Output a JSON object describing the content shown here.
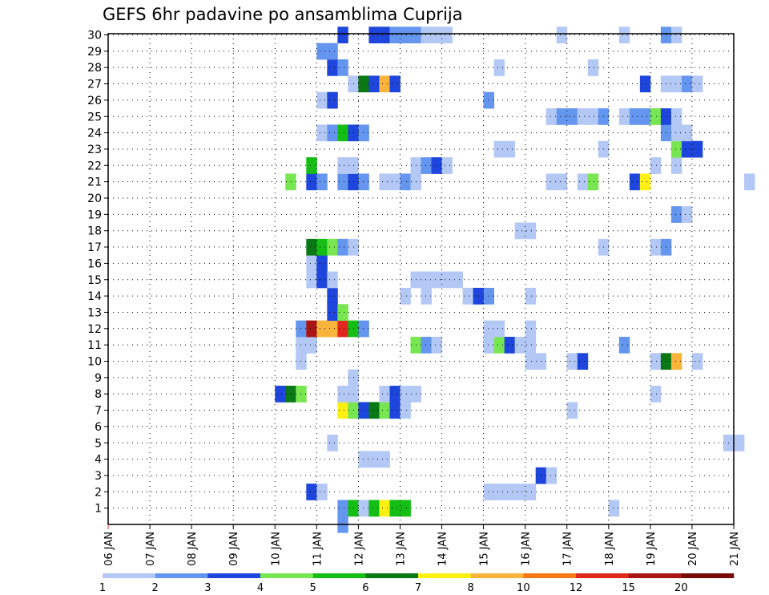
{
  "chart_data": {
    "type": "heatmap",
    "title": "GEFS 6hr padavine po ansamblima Cuprija",
    "y_categories": [
      "1",
      "2",
      "3",
      "4",
      "5",
      "6",
      "7",
      "8",
      "9",
      "10",
      "11",
      "12",
      "13",
      "14",
      "15",
      "16",
      "17",
      "18",
      "19",
      "20",
      "21",
      "22",
      "23",
      "24",
      "25",
      "26",
      "27",
      "28",
      "29",
      "30"
    ],
    "x_ticks": [
      "06 JAN",
      "07 JAN",
      "08 JAN",
      "09 JAN",
      "10 JAN",
      "11 JAN",
      "12 JAN",
      "13 JAN",
      "14 JAN",
      "15 JAN",
      "16 JAN",
      "17 JAN",
      "18 JAN",
      "19 JAN",
      "20 JAN",
      "21 JAN"
    ],
    "x_start": "06 JAN 00Z",
    "x_step_hours": 6,
    "grid": true,
    "colorbar": {
      "labels": [
        "1",
        "2",
        "3",
        "4",
        "5",
        "6",
        "7",
        "8",
        "10",
        "12",
        "15",
        "20"
      ],
      "colors": [
        "#b4c8f5",
        "#6496f0",
        "#1e46dc",
        "#78e650",
        "#14be14",
        "#0a7814",
        "#fff014",
        "#fab43c",
        "#f57814",
        "#e1281e",
        "#aa1414",
        "#780a0a"
      ]
    },
    "cells": [
      [
        1,
        22,
        "#6496f0"
      ],
      [
        1,
        23,
        "#14be14"
      ],
      [
        1,
        24,
        "#b4c8f5"
      ],
      [
        1,
        25,
        "#14be14"
      ],
      [
        1,
        26,
        "#fff014"
      ],
      [
        1,
        27,
        "#14be14"
      ],
      [
        1,
        28,
        "#14be14"
      ],
      [
        1,
        48,
        "#b4c8f5"
      ],
      [
        2,
        19,
        "#1e46dc"
      ],
      [
        2,
        20,
        "#b4c8f5"
      ],
      [
        2,
        36,
        "#b4c8f5"
      ],
      [
        2,
        37,
        "#b4c8f5"
      ],
      [
        2,
        38,
        "#b4c8f5"
      ],
      [
        2,
        39,
        "#b4c8f5"
      ],
      [
        2,
        40,
        "#b4c8f5"
      ],
      [
        3,
        41,
        "#1e46dc"
      ],
      [
        3,
        42,
        "#b4c8f5"
      ],
      [
        4,
        24,
        "#b4c8f5"
      ],
      [
        4,
        25,
        "#b4c8f5"
      ],
      [
        4,
        26,
        "#b4c8f5"
      ],
      [
        5,
        21,
        "#b4c8f5"
      ],
      [
        5,
        59,
        "#b4c8f5"
      ],
      [
        5,
        60,
        "#b4c8f5"
      ],
      [
        7,
        22,
        "#fff014"
      ],
      [
        7,
        23,
        "#78e650"
      ],
      [
        7,
        24,
        "#1e46dc"
      ],
      [
        7,
        25,
        "#0a7814"
      ],
      [
        7,
        26,
        "#78e650"
      ],
      [
        7,
        27,
        "#1e46dc"
      ],
      [
        7,
        28,
        "#b4c8f5"
      ],
      [
        7,
        44,
        "#b4c8f5"
      ],
      [
        8,
        16,
        "#1e46dc"
      ],
      [
        8,
        17,
        "#0a7814"
      ],
      [
        8,
        18,
        "#78e650"
      ],
      [
        8,
        22,
        "#b4c8f5"
      ],
      [
        8,
        23,
        "#b4c8f5"
      ],
      [
        8,
        26,
        "#b4c8f5"
      ],
      [
        8,
        27,
        "#1e46dc"
      ],
      [
        8,
        28,
        "#b4c8f5"
      ],
      [
        8,
        29,
        "#b4c8f5"
      ],
      [
        8,
        52,
        "#b4c8f5"
      ],
      [
        9,
        23,
        "#b4c8f5"
      ],
      [
        10,
        18,
        "#b4c8f5"
      ],
      [
        10,
        40,
        "#b4c8f5"
      ],
      [
        10,
        41,
        "#b4c8f5"
      ],
      [
        10,
        44,
        "#b4c8f5"
      ],
      [
        10,
        45,
        "#1e46dc"
      ],
      [
        10,
        52,
        "#b4c8f5"
      ],
      [
        10,
        53,
        "#0a7814"
      ],
      [
        10,
        54,
        "#fab43c"
      ],
      [
        10,
        56,
        "#b4c8f5"
      ],
      [
        11,
        18,
        "#b4c8f5"
      ],
      [
        11,
        19,
        "#b4c8f5"
      ],
      [
        11,
        29,
        "#78e650"
      ],
      [
        11,
        30,
        "#6496f0"
      ],
      [
        11,
        31,
        "#b4c8f5"
      ],
      [
        11,
        36,
        "#b4c8f5"
      ],
      [
        11,
        37,
        "#78e650"
      ],
      [
        11,
        38,
        "#1e46dc"
      ],
      [
        11,
        39,
        "#b4c8f5"
      ],
      [
        11,
        40,
        "#b4c8f5"
      ],
      [
        11,
        49,
        "#6496f0"
      ],
      [
        12,
        18,
        "#6496f0"
      ],
      [
        12,
        19,
        "#aa1414"
      ],
      [
        12,
        20,
        "#fab43c"
      ],
      [
        12,
        21,
        "#fab43c"
      ],
      [
        12,
        22,
        "#e1281e"
      ],
      [
        12,
        23,
        "#14be14"
      ],
      [
        12,
        24,
        "#6496f0"
      ],
      [
        12,
        36,
        "#b4c8f5"
      ],
      [
        12,
        37,
        "#b4c8f5"
      ],
      [
        12,
        40,
        "#b4c8f5"
      ],
      [
        13,
        21,
        "#1e46dc"
      ],
      [
        13,
        22,
        "#78e650"
      ],
      [
        14,
        21,
        "#1e46dc"
      ],
      [
        14,
        28,
        "#b4c8f5"
      ],
      [
        14,
        30,
        "#b4c8f5"
      ],
      [
        14,
        34,
        "#b4c8f5"
      ],
      [
        14,
        35,
        "#1e46dc"
      ],
      [
        14,
        36,
        "#6496f0"
      ],
      [
        14,
        40,
        "#b4c8f5"
      ],
      [
        15,
        19,
        "#b4c8f5"
      ],
      [
        15,
        20,
        "#1e46dc"
      ],
      [
        15,
        21,
        "#b4c8f5"
      ],
      [
        15,
        29,
        "#b4c8f5"
      ],
      [
        15,
        30,
        "#b4c8f5"
      ],
      [
        15,
        31,
        "#b4c8f5"
      ],
      [
        15,
        32,
        "#b4c8f5"
      ],
      [
        15,
        33,
        "#b4c8f5"
      ],
      [
        16,
        19,
        "#b4c8f5"
      ],
      [
        16,
        20,
        "#1e46dc"
      ],
      [
        17,
        19,
        "#0a7814"
      ],
      [
        17,
        20,
        "#14be14"
      ],
      [
        17,
        21,
        "#78e650"
      ],
      [
        17,
        22,
        "#6496f0"
      ],
      [
        17,
        23,
        "#b4c8f5"
      ],
      [
        17,
        47,
        "#b4c8f5"
      ],
      [
        17,
        52,
        "#b4c8f5"
      ],
      [
        17,
        53,
        "#6496f0"
      ],
      [
        18,
        39,
        "#b4c8f5"
      ],
      [
        18,
        40,
        "#b4c8f5"
      ],
      [
        19,
        54,
        "#6496f0"
      ],
      [
        19,
        55,
        "#b4c8f5"
      ],
      [
        21,
        17,
        "#78e650"
      ],
      [
        21,
        19,
        "#1e46dc"
      ],
      [
        21,
        20,
        "#6496f0"
      ],
      [
        21,
        22,
        "#6496f0"
      ],
      [
        21,
        23,
        "#1e46dc"
      ],
      [
        21,
        24,
        "#6496f0"
      ],
      [
        21,
        26,
        "#b4c8f5"
      ],
      [
        21,
        27,
        "#b4c8f5"
      ],
      [
        21,
        28,
        "#6496f0"
      ],
      [
        21,
        29,
        "#b4c8f5"
      ],
      [
        21,
        42,
        "#b4c8f5"
      ],
      [
        21,
        43,
        "#b4c8f5"
      ],
      [
        21,
        45,
        "#b4c8f5"
      ],
      [
        21,
        46,
        "#78e650"
      ],
      [
        21,
        50,
        "#1e46dc"
      ],
      [
        21,
        51,
        "#fff014"
      ],
      [
        21,
        61,
        "#b4c8f5"
      ],
      [
        22,
        19,
        "#14be14"
      ],
      [
        22,
        22,
        "#b4c8f5"
      ],
      [
        22,
        23,
        "#b4c8f5"
      ],
      [
        22,
        29,
        "#b4c8f5"
      ],
      [
        22,
        30,
        "#6496f0"
      ],
      [
        22,
        31,
        "#1e46dc"
      ],
      [
        22,
        32,
        "#b4c8f5"
      ],
      [
        22,
        52,
        "#b4c8f5"
      ],
      [
        22,
        54,
        "#b4c8f5"
      ],
      [
        23,
        37,
        "#b4c8f5"
      ],
      [
        23,
        38,
        "#b4c8f5"
      ],
      [
        23,
        47,
        "#b4c8f5"
      ],
      [
        23,
        54,
        "#78e650"
      ],
      [
        23,
        55,
        "#1e46dc"
      ],
      [
        23,
        56,
        "#1e46dc"
      ],
      [
        24,
        20,
        "#b4c8f5"
      ],
      [
        24,
        21,
        "#6496f0"
      ],
      [
        24,
        22,
        "#14be14"
      ],
      [
        24,
        23,
        "#1e46dc"
      ],
      [
        24,
        24,
        "#6496f0"
      ],
      [
        24,
        53,
        "#6496f0"
      ],
      [
        24,
        54,
        "#b4c8f5"
      ],
      [
        24,
        55,
        "#b4c8f5"
      ],
      [
        25,
        42,
        "#b4c8f5"
      ],
      [
        25,
        43,
        "#6496f0"
      ],
      [
        25,
        44,
        "#6496f0"
      ],
      [
        25,
        45,
        "#b4c8f5"
      ],
      [
        25,
        46,
        "#b4c8f5"
      ],
      [
        25,
        47,
        "#6496f0"
      ],
      [
        25,
        49,
        "#b4c8f5"
      ],
      [
        25,
        50,
        "#6496f0"
      ],
      [
        25,
        51,
        "#6496f0"
      ],
      [
        25,
        52,
        "#78e650"
      ],
      [
        25,
        53,
        "#1e46dc"
      ],
      [
        25,
        54,
        "#b4c8f5"
      ],
      [
        26,
        20,
        "#b4c8f5"
      ],
      [
        26,
        21,
        "#1e46dc"
      ],
      [
        26,
        36,
        "#6496f0"
      ],
      [
        27,
        23,
        "#b4c8f5"
      ],
      [
        27,
        24,
        "#0a7814"
      ],
      [
        27,
        25,
        "#1e46dc"
      ],
      [
        27,
        26,
        "#fab43c"
      ],
      [
        27,
        27,
        "#1e46dc"
      ],
      [
        27,
        51,
        "#1e46dc"
      ],
      [
        27,
        53,
        "#b4c8f5"
      ],
      [
        27,
        54,
        "#b4c8f5"
      ],
      [
        27,
        55,
        "#6496f0"
      ],
      [
        27,
        56,
        "#b4c8f5"
      ],
      [
        28,
        21,
        "#1e46dc"
      ],
      [
        28,
        22,
        "#6496f0"
      ],
      [
        28,
        37,
        "#b4c8f5"
      ],
      [
        28,
        46,
        "#b4c8f5"
      ],
      [
        29,
        20,
        "#6496f0"
      ],
      [
        29,
        21,
        "#6496f0"
      ],
      [
        30,
        22,
        "#1e46dc"
      ],
      [
        30,
        25,
        "#1e46dc"
      ],
      [
        30,
        26,
        "#1e46dc"
      ],
      [
        30,
        27,
        "#6496f0"
      ],
      [
        30,
        28,
        "#6496f0"
      ],
      [
        30,
        29,
        "#6496f0"
      ],
      [
        30,
        30,
        "#b4c8f5"
      ],
      [
        30,
        31,
        "#b4c8f5"
      ],
      [
        30,
        32,
        "#b4c8f5"
      ],
      [
        30,
        43,
        "#b4c8f5"
      ],
      [
        30,
        49,
        "#b4c8f5"
      ],
      [
        30,
        53,
        "#6496f0"
      ],
      [
        30,
        54,
        "#b4c8f5"
      ],
      [
        0,
        22,
        "#6496f0"
      ]
    ]
  }
}
